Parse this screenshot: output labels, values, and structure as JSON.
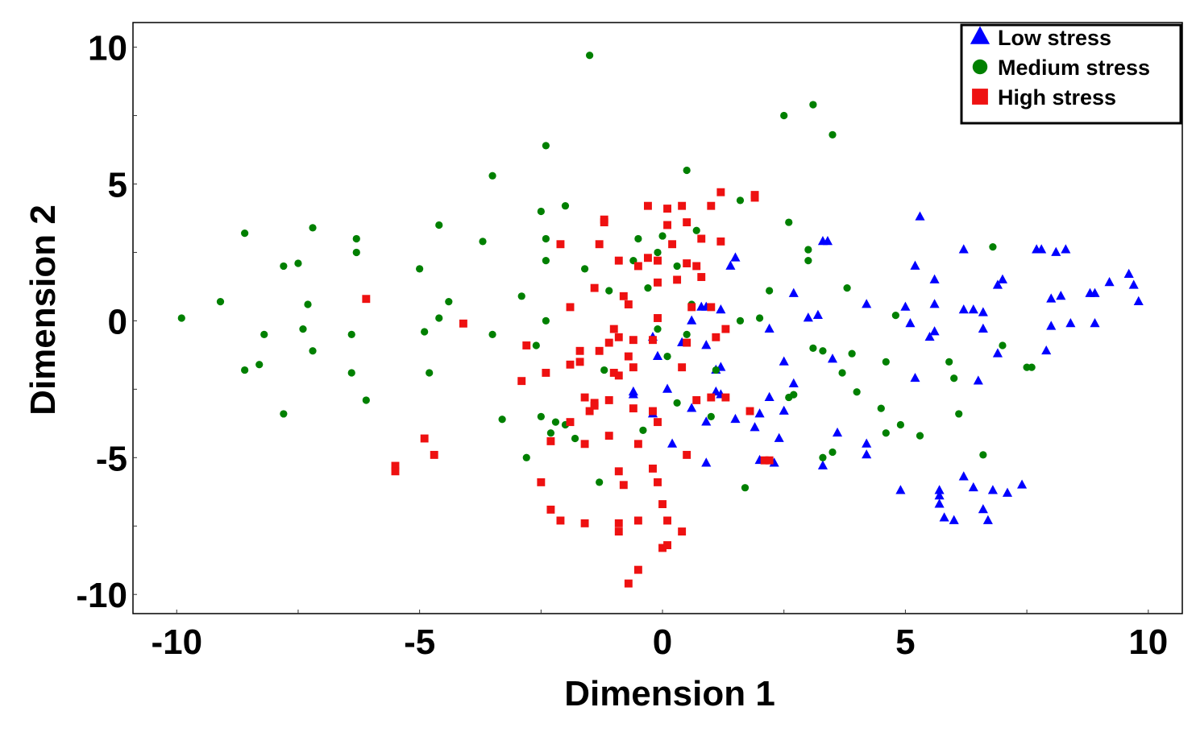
{
  "chart_data": {
    "type": "scatter",
    "xlabel": "Dimension 1",
    "ylabel": "Dimension 2",
    "xlim": [
      -10.9,
      10.7
    ],
    "ylim": [
      -10.7,
      10.9
    ],
    "xticks": [
      -10,
      -5,
      0,
      5,
      10
    ],
    "yticks": [
      -10,
      -5,
      0,
      5,
      10
    ],
    "x_tick_labels": [
      "-10",
      "-5",
      "0",
      "5",
      "10"
    ],
    "y_tick_labels": [
      "-10",
      "-5",
      "0",
      "5",
      "10"
    ],
    "grid": false,
    "legend_position": "top-right",
    "series": [
      {
        "name": "Low stress",
        "marker": "triangle",
        "color": "#0000ff",
        "points": [
          [
            -0.6,
            -2.6
          ],
          [
            -0.6,
            -2.7
          ],
          [
            -0.2,
            -0.6
          ],
          [
            -0.1,
            -1.3
          ],
          [
            0.1,
            -2.5
          ],
          [
            -0.2,
            -3.4
          ],
          [
            0.2,
            -4.5
          ],
          [
            0.6,
            -3.2
          ],
          [
            0.9,
            -5.2
          ],
          [
            0.9,
            -3.7
          ],
          [
            1.1,
            -2.6
          ],
          [
            1.2,
            -2.7
          ],
          [
            1.1,
            -1.8
          ],
          [
            1.2,
            -1.7
          ],
          [
            0.8,
            0.5
          ],
          [
            0.9,
            0.5
          ],
          [
            1.2,
            0.4
          ],
          [
            1.4,
            2.0
          ],
          [
            1.5,
            2.3
          ],
          [
            0.4,
            -0.8
          ],
          [
            0.6,
            0.0
          ],
          [
            0.9,
            -0.9
          ],
          [
            1.5,
            -3.6
          ],
          [
            1.9,
            -3.9
          ],
          [
            2.0,
            -5.1
          ],
          [
            2.2,
            -2.8
          ],
          [
            2.2,
            -0.3
          ],
          [
            2.3,
            -5.2
          ],
          [
            2.4,
            -4.3
          ],
          [
            2.5,
            -3.3
          ],
          [
            2.5,
            -1.5
          ],
          [
            2.7,
            -2.3
          ],
          [
            2.7,
            1.0
          ],
          [
            3.0,
            0.1
          ],
          [
            3.2,
            0.2
          ],
          [
            3.3,
            -5.3
          ],
          [
            3.3,
            2.9
          ],
          [
            3.4,
            2.9
          ],
          [
            3.6,
            -4.1
          ],
          [
            3.5,
            -1.4
          ],
          [
            4.2,
            0.6
          ],
          [
            4.2,
            -4.5
          ],
          [
            4.2,
            -4.9
          ],
          [
            4.9,
            -6.2
          ],
          [
            5.0,
            0.5
          ],
          [
            5.1,
            -0.1
          ],
          [
            5.2,
            -2.1
          ],
          [
            5.2,
            2.0
          ],
          [
            5.3,
            3.8
          ],
          [
            5.5,
            -0.6
          ],
          [
            5.6,
            1.5
          ],
          [
            5.6,
            0.6
          ],
          [
            5.6,
            -0.4
          ],
          [
            5.7,
            -6.2
          ],
          [
            5.7,
            -6.4
          ],
          [
            5.7,
            -6.7
          ],
          [
            5.8,
            -7.2
          ],
          [
            6.0,
            -7.3
          ],
          [
            6.2,
            0.4
          ],
          [
            6.2,
            2.6
          ],
          [
            6.2,
            -5.7
          ],
          [
            6.4,
            0.4
          ],
          [
            6.4,
            -6.1
          ],
          [
            6.5,
            -2.2
          ],
          [
            6.6,
            -0.3
          ],
          [
            6.6,
            0.3
          ],
          [
            6.6,
            -6.9
          ],
          [
            6.7,
            -7.3
          ],
          [
            6.8,
            -6.2
          ],
          [
            6.9,
            -1.2
          ],
          [
            6.9,
            1.3
          ],
          [
            7.0,
            1.5
          ],
          [
            7.1,
            -6.3
          ],
          [
            7.4,
            -6.0
          ],
          [
            7.7,
            2.6
          ],
          [
            7.8,
            2.6
          ],
          [
            7.9,
            -1.1
          ],
          [
            8.0,
            0.8
          ],
          [
            8.0,
            -0.2
          ],
          [
            8.1,
            2.5
          ],
          [
            8.2,
            0.9
          ],
          [
            8.3,
            2.6
          ],
          [
            8.4,
            -0.1
          ],
          [
            8.8,
            1.0
          ],
          [
            8.9,
            1.0
          ],
          [
            8.9,
            -0.1
          ],
          [
            9.2,
            1.4
          ],
          [
            9.6,
            1.7
          ],
          [
            9.7,
            1.3
          ],
          [
            9.8,
            0.7
          ],
          [
            2.0,
            -3.4
          ]
        ]
      },
      {
        "name": "Medium stress",
        "marker": "circle",
        "color": "#008000",
        "points": [
          [
            -9.9,
            0.1
          ],
          [
            -9.1,
            0.7
          ],
          [
            -8.6,
            3.2
          ],
          [
            -8.6,
            -1.8
          ],
          [
            -8.3,
            -1.6
          ],
          [
            -8.2,
            -0.5
          ],
          [
            -7.8,
            2.0
          ],
          [
            -7.8,
            -3.4
          ],
          [
            -7.5,
            2.1
          ],
          [
            -7.4,
            -0.3
          ],
          [
            -7.3,
            0.6
          ],
          [
            -7.2,
            -1.1
          ],
          [
            -7.2,
            3.4
          ],
          [
            -6.4,
            -1.9
          ],
          [
            -6.4,
            -0.5
          ],
          [
            -6.3,
            3.0
          ],
          [
            -6.3,
            2.5
          ],
          [
            -6.1,
            -2.9
          ],
          [
            -5.0,
            1.9
          ],
          [
            -4.9,
            -0.4
          ],
          [
            -4.8,
            -1.9
          ],
          [
            -4.6,
            0.1
          ],
          [
            -4.6,
            3.5
          ],
          [
            -4.4,
            0.7
          ],
          [
            -3.7,
            2.9
          ],
          [
            -3.5,
            -0.5
          ],
          [
            -3.5,
            5.3
          ],
          [
            -3.3,
            -3.6
          ],
          [
            -2.9,
            0.9
          ],
          [
            -2.8,
            -5.0
          ],
          [
            -2.6,
            -0.9
          ],
          [
            -2.5,
            -3.5
          ],
          [
            -2.5,
            4.0
          ],
          [
            -2.4,
            2.2
          ],
          [
            -2.4,
            0.0
          ],
          [
            -2.4,
            6.4
          ],
          [
            -2.4,
            3.0
          ],
          [
            -2.3,
            -4.1
          ],
          [
            -2.2,
            -3.7
          ],
          [
            -2.0,
            -3.8
          ],
          [
            -2.0,
            4.2
          ],
          [
            -1.8,
            -4.3
          ],
          [
            -1.6,
            1.9
          ],
          [
            -1.5,
            9.7
          ],
          [
            -1.3,
            -5.9
          ],
          [
            -1.2,
            -1.8
          ],
          [
            -1.1,
            1.1
          ],
          [
            -1.0,
            -1.9
          ],
          [
            -0.6,
            2.2
          ],
          [
            -0.5,
            3.0
          ],
          [
            -0.4,
            -4.0
          ],
          [
            -0.3,
            1.2
          ],
          [
            -0.1,
            2.5
          ],
          [
            -0.1,
            -0.3
          ],
          [
            0.0,
            3.1
          ],
          [
            0.1,
            -1.3
          ],
          [
            0.3,
            -3.0
          ],
          [
            0.3,
            2.0
          ],
          [
            0.5,
            -0.5
          ],
          [
            0.5,
            5.5
          ],
          [
            0.6,
            0.6
          ],
          [
            0.7,
            3.3
          ],
          [
            0.8,
            1.6
          ],
          [
            1.0,
            -3.5
          ],
          [
            1.1,
            -1.8
          ],
          [
            1.6,
            0.0
          ],
          [
            1.6,
            4.4
          ],
          [
            1.7,
            -6.1
          ],
          [
            2.0,
            0.1
          ],
          [
            2.2,
            1.1
          ],
          [
            2.5,
            7.5
          ],
          [
            2.6,
            -2.8
          ],
          [
            2.6,
            3.6
          ],
          [
            2.7,
            -2.7
          ],
          [
            3.0,
            2.6
          ],
          [
            3.0,
            2.2
          ],
          [
            3.1,
            7.9
          ],
          [
            3.1,
            -1.0
          ],
          [
            3.3,
            -1.1
          ],
          [
            3.3,
            -5.0
          ],
          [
            3.5,
            -4.8
          ],
          [
            3.5,
            6.8
          ],
          [
            3.7,
            -1.9
          ],
          [
            3.8,
            1.2
          ],
          [
            3.9,
            -1.2
          ],
          [
            4.0,
            -2.6
          ],
          [
            4.5,
            -3.2
          ],
          [
            4.6,
            -1.5
          ],
          [
            4.6,
            -4.1
          ],
          [
            4.8,
            0.2
          ],
          [
            4.9,
            -3.8
          ],
          [
            5.3,
            -4.2
          ],
          [
            5.9,
            -1.5
          ],
          [
            6.0,
            -2.1
          ],
          [
            6.1,
            -3.4
          ],
          [
            6.6,
            -4.9
          ],
          [
            6.8,
            2.7
          ],
          [
            7.0,
            -0.9
          ],
          [
            7.5,
            -1.7
          ],
          [
            7.6,
            -1.7
          ]
        ]
      },
      {
        "name": "High stress",
        "marker": "square",
        "color": "#ee1111",
        "points": [
          [
            -6.1,
            0.8
          ],
          [
            -5.5,
            -5.3
          ],
          [
            -5.5,
            -5.5
          ],
          [
            -4.9,
            -4.3
          ],
          [
            -4.7,
            -4.9
          ],
          [
            -4.1,
            -0.1
          ],
          [
            -2.9,
            -2.2
          ],
          [
            -2.8,
            -0.9
          ],
          [
            -2.5,
            -5.9
          ],
          [
            -2.4,
            -1.9
          ],
          [
            -2.3,
            -4.4
          ],
          [
            -2.3,
            -6.9
          ],
          [
            -2.1,
            2.8
          ],
          [
            -2.1,
            -7.3
          ],
          [
            -1.9,
            -3.7
          ],
          [
            -1.9,
            -1.6
          ],
          [
            -1.9,
            0.5
          ],
          [
            -1.7,
            -1.5
          ],
          [
            -1.7,
            -1.1
          ],
          [
            -1.6,
            -2.8
          ],
          [
            -1.6,
            -4.5
          ],
          [
            -1.6,
            -7.4
          ],
          [
            -1.5,
            -3.3
          ],
          [
            -1.4,
            -3.0
          ],
          [
            -1.4,
            -3.1
          ],
          [
            -1.4,
            1.2
          ],
          [
            -1.3,
            -1.1
          ],
          [
            -1.3,
            2.8
          ],
          [
            -1.2,
            3.7
          ],
          [
            -1.2,
            3.6
          ],
          [
            -1.1,
            -2.9
          ],
          [
            -1.1,
            -4.2
          ],
          [
            -1.1,
            -0.8
          ],
          [
            -1.0,
            -0.3
          ],
          [
            -1.0,
            -1.9
          ],
          [
            -0.9,
            -2.0
          ],
          [
            -0.9,
            -0.6
          ],
          [
            -0.9,
            2.2
          ],
          [
            -0.9,
            -7.4
          ],
          [
            -0.9,
            -5.5
          ],
          [
            -0.9,
            -7.7
          ],
          [
            -0.8,
            -6.0
          ],
          [
            -0.8,
            0.9
          ],
          [
            -0.7,
            -9.6
          ],
          [
            -0.7,
            0.6
          ],
          [
            -0.7,
            -1.3
          ],
          [
            -0.6,
            -1.7
          ],
          [
            -0.6,
            -3.2
          ],
          [
            -0.6,
            -0.7
          ],
          [
            -0.5,
            2.0
          ],
          [
            -0.5,
            -4.5
          ],
          [
            -0.5,
            -7.3
          ],
          [
            -0.5,
            -9.1
          ],
          [
            -0.3,
            4.2
          ],
          [
            -0.3,
            2.3
          ],
          [
            -0.2,
            -0.7
          ],
          [
            -0.2,
            -3.3
          ],
          [
            -0.2,
            -5.4
          ],
          [
            -0.1,
            0.1
          ],
          [
            -0.1,
            1.4
          ],
          [
            -0.1,
            -3.7
          ],
          [
            -0.1,
            -5.9
          ],
          [
            -0.1,
            2.2
          ],
          [
            0.0,
            -8.3
          ],
          [
            0.0,
            -6.7
          ],
          [
            0.1,
            3.5
          ],
          [
            0.1,
            -8.2
          ],
          [
            0.1,
            -7.3
          ],
          [
            0.1,
            4.1
          ],
          [
            0.2,
            2.8
          ],
          [
            0.3,
            1.5
          ],
          [
            0.4,
            4.2
          ],
          [
            0.4,
            -7.7
          ],
          [
            0.4,
            -1.7
          ],
          [
            0.5,
            -4.9
          ],
          [
            0.5,
            2.1
          ],
          [
            0.5,
            3.6
          ],
          [
            0.5,
            -0.8
          ],
          [
            0.6,
            0.5
          ],
          [
            0.7,
            -2.9
          ],
          [
            0.7,
            2.0
          ],
          [
            0.8,
            1.6
          ],
          [
            0.8,
            3.0
          ],
          [
            1.0,
            0.5
          ],
          [
            1.0,
            4.2
          ],
          [
            1.0,
            -2.8
          ],
          [
            1.1,
            -0.6
          ],
          [
            1.2,
            4.7
          ],
          [
            1.2,
            2.9
          ],
          [
            1.3,
            -0.3
          ],
          [
            1.3,
            -2.8
          ],
          [
            1.8,
            -3.3
          ],
          [
            1.9,
            4.6
          ],
          [
            1.9,
            4.5
          ],
          [
            2.1,
            -5.1
          ],
          [
            2.2,
            -5.1
          ]
        ]
      }
    ]
  }
}
